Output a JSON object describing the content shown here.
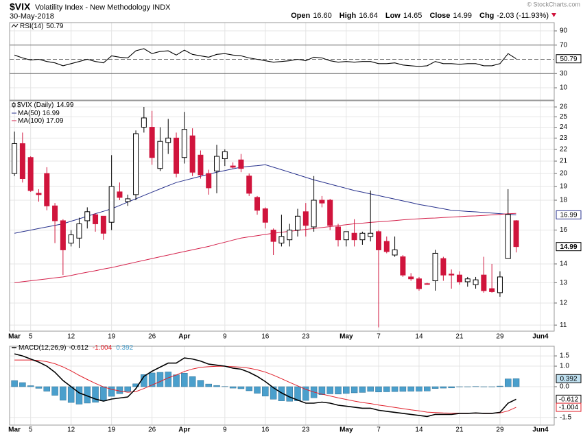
{
  "header": {
    "symbol": "$VIX",
    "name": "Volatility Index - New Methodology INDX",
    "date": "30-May-2018",
    "source": "© StockCharts.com",
    "quote": [
      {
        "label": "Open",
        "value": "16.60"
      },
      {
        "label": "High",
        "value": "16.64"
      },
      {
        "label": "Low",
        "value": "14.65"
      },
      {
        "label": "Close",
        "value": "14.99"
      },
      {
        "label": "Chg",
        "value": "-2.03 (-11.93%)"
      }
    ]
  },
  "chart_data": [
    {
      "type": "line",
      "title": "RSI(14)",
      "color": "#000000",
      "values": [
        56,
        52,
        49,
        50,
        47,
        45,
        41,
        44,
        47,
        50,
        47,
        45,
        55,
        53,
        52,
        62,
        65,
        58,
        61,
        62,
        56,
        63,
        57,
        55,
        53,
        57,
        58,
        56,
        55,
        52,
        50,
        48,
        46,
        47,
        48,
        50,
        48,
        53,
        52,
        48,
        46,
        47,
        46,
        47,
        47,
        44,
        44,
        45,
        42,
        41,
        40,
        41,
        47,
        44,
        44,
        43,
        44,
        44,
        41,
        41,
        44,
        58,
        50.79
      ],
      "ylim": [
        -7.3,
        101.6
      ],
      "yticks": [
        10,
        30,
        70,
        90
      ],
      "bands": [
        30,
        70
      ]
    },
    {
      "type": "candlestick",
      "title": "$VIX (Daily)",
      "log": true,
      "up_color": "#000000",
      "down_color": "#d0143c",
      "open": [
        20.0,
        22.5,
        21.3,
        18.5,
        20.0,
        17.6,
        16.6,
        15.2,
        15.5,
        16.6,
        17.0,
        16.9,
        16.5,
        18.6,
        17.9,
        18.4,
        24.0,
        24.0,
        20.4,
        22.6,
        23.0,
        21.3,
        23.2,
        21.5,
        20.0,
        20.2,
        21.2,
        20.6,
        21.1,
        19.8,
        18.2,
        17.4,
        16.0,
        15.2,
        15.4,
        16.0,
        17.2,
        16.2,
        18.0,
        18.0,
        16.2,
        15.4,
        15.8,
        15.4,
        15.6,
        15.9,
        15.3,
        14.5,
        14.4,
        13.3,
        13.2,
        12.95,
        13.1,
        14.3,
        13.45,
        13.4,
        13.05,
        12.9,
        13.4,
        12.7,
        12.5,
        14.3,
        16.6
      ],
      "high": [
        23.6,
        23.5,
        21.4,
        18.8,
        20.5,
        17.8,
        16.7,
        16.0,
        16.8,
        17.5,
        17.1,
        16.9,
        21.5,
        19.3,
        18.4,
        23.7,
        26.0,
        25.6,
        24.0,
        24.8,
        23.5,
        25.5,
        23.9,
        21.9,
        20.3,
        22.4,
        22.0,
        20.9,
        21.6,
        20.0,
        18.3,
        17.5,
        16.1,
        17.0,
        16.4,
        17.4,
        17.8,
        19.8,
        18.3,
        18.1,
        16.4,
        15.9,
        16.7,
        15.9,
        18.7,
        16.0,
        15.6,
        15.6,
        14.5,
        13.5,
        13.3,
        13.0,
        14.8,
        14.4,
        13.7,
        13.6,
        13.3,
        13.3,
        14.4,
        14.0,
        13.6,
        18.8,
        16.64
      ],
      "low": [
        19.8,
        19.3,
        18.6,
        17.9,
        17.3,
        15.2,
        13.4,
        15.0,
        14.9,
        16.1,
        15.9,
        15.4,
        16.0,
        18.0,
        17.6,
        18.0,
        23.5,
        20.7,
        20.2,
        21.6,
        19.7,
        20.8,
        19.8,
        19.6,
        18.4,
        18.5,
        20.6,
        20.4,
        20.1,
        18.3,
        17.0,
        16.1,
        14.5,
        15.0,
        15.0,
        15.6,
        15.6,
        15.9,
        17.5,
        16.0,
        15.0,
        15.0,
        15.0,
        15.1,
        15.3,
        10.9,
        14.6,
        14.4,
        13.3,
        13.1,
        12.6,
        12.9,
        12.6,
        13.1,
        12.7,
        12.9,
        12.8,
        12.7,
        12.5,
        12.5,
        12.3,
        14.3,
        14.65
      ],
      "close": [
        22.5,
        19.6,
        18.7,
        18.4,
        17.6,
        16.6,
        14.8,
        15.7,
        16.4,
        17.2,
        16.4,
        15.8,
        19.0,
        18.2,
        18.1,
        23.4,
        24.9,
        21.3,
        22.7,
        23.0,
        20.0,
        23.8,
        20.1,
        19.9,
        18.9,
        21.4,
        21.8,
        20.5,
        20.4,
        18.5,
        17.3,
        16.5,
        15.3,
        15.6,
        16.0,
        16.9,
        16.3,
        18.0,
        17.8,
        16.3,
        15.4,
        15.9,
        15.4,
        15.8,
        15.8,
        14.8,
        14.7,
        14.8,
        13.4,
        13.2,
        12.7,
        12.93,
        14.6,
        13.4,
        13.4,
        13.05,
        13.2,
        13.15,
        12.6,
        12.55,
        13.3,
        17.02,
        14.99
      ],
      "series": [
        {
          "name": "MA(50)",
          "color": "#26308c",
          "values": [
            15.8,
            15.9,
            16.0,
            16.1,
            16.2,
            16.3,
            16.4,
            16.57,
            16.73,
            16.9,
            17.07,
            17.23,
            17.4,
            17.63,
            17.87,
            18.1,
            18.34,
            18.58,
            18.82,
            19.06,
            19.3,
            19.46,
            19.62,
            19.78,
            19.94,
            20.1,
            20.23,
            20.37,
            20.5,
            20.57,
            20.63,
            20.7,
            20.5,
            20.3,
            20.1,
            19.9,
            19.7,
            19.5,
            19.34,
            19.18,
            19.02,
            18.86,
            18.7,
            18.58,
            18.45,
            18.33,
            18.2,
            18.08,
            17.95,
            17.83,
            17.7,
            17.6,
            17.5,
            17.4,
            17.3,
            17.26,
            17.22,
            17.19,
            17.15,
            17.11,
            17.07,
            17.03,
            16.99
          ]
        },
        {
          "name": "MA(100)",
          "color": "#d4204a",
          "values": [
            13.0,
            13.05,
            13.1,
            13.15,
            13.2,
            13.25,
            13.3,
            13.38,
            13.47,
            13.55,
            13.63,
            13.72,
            13.8,
            13.9,
            14.0,
            14.1,
            14.2,
            14.3,
            14.4,
            14.5,
            14.6,
            14.7,
            14.8,
            14.9,
            15.0,
            15.13,
            15.25,
            15.38,
            15.5,
            15.58,
            15.65,
            15.73,
            15.8,
            15.86,
            15.92,
            15.98,
            16.04,
            16.1,
            16.16,
            16.22,
            16.28,
            16.34,
            16.4,
            16.44,
            16.49,
            16.53,
            16.57,
            16.61,
            16.66,
            16.7,
            16.73,
            16.76,
            16.78,
            16.81,
            16.84,
            16.87,
            16.9,
            16.92,
            16.95,
            16.99,
            17.02,
            17.06,
            17.09
          ]
        }
      ],
      "ylim": [
        10.74,
        26.64
      ],
      "yticks": [
        11,
        12,
        13,
        14,
        16,
        18,
        19,
        20,
        21,
        22,
        23,
        24,
        25,
        26
      ],
      "xlim": [
        -0.6,
        66.7
      ],
      "xticks": [
        {
          "value": 0,
          "label": "Mar"
        },
        {
          "value": 2,
          "label": "5"
        },
        {
          "value": 7,
          "label": "12"
        },
        {
          "value": 12,
          "label": "19"
        },
        {
          "value": 17,
          "label": "26"
        },
        {
          "value": 21,
          "label": "Apr"
        },
        {
          "value": 26,
          "label": "9"
        },
        {
          "value": 31,
          "label": "16"
        },
        {
          "value": 36,
          "label": "23"
        },
        {
          "value": 41,
          "label": "May"
        },
        {
          "value": 45,
          "label": "7"
        },
        {
          "value": 50,
          "label": "14"
        },
        {
          "value": 55,
          "label": "21"
        },
        {
          "value": 60,
          "label": "29"
        },
        {
          "value": 65,
          "label": "Jun4"
        }
      ]
    },
    {
      "type": "macd",
      "title": "MACD(12,26,9)",
      "macd_color": "#000000",
      "signal_color": "#e0202a",
      "histogram_color": "#4a9fcc",
      "macd": [
        1.6,
        1.5,
        1.35,
        1.2,
        1.0,
        0.7,
        0.3,
        0.0,
        -0.3,
        -0.45,
        -0.6,
        -0.7,
        -0.6,
        -0.55,
        -0.5,
        -0.1,
        0.5,
        0.75,
        0.95,
        1.15,
        1.15,
        1.4,
        1.35,
        1.25,
        1.1,
        1.05,
        1.0,
        0.9,
        0.85,
        0.7,
        0.5,
        0.25,
        -0.05,
        -0.3,
        -0.5,
        -0.65,
        -0.8,
        -0.8,
        -0.75,
        -0.8,
        -0.9,
        -0.95,
        -1.0,
        -1.05,
        -1.05,
        -1.15,
        -1.2,
        -1.25,
        -1.3,
        -1.35,
        -1.4,
        -1.45,
        -1.35,
        -1.35,
        -1.35,
        -1.3,
        -1.3,
        -1.28,
        -1.3,
        -1.3,
        -1.25,
        -0.8,
        -0.612
      ],
      "signal": [
        1.3,
        1.3,
        1.3,
        1.28,
        1.22,
        1.12,
        0.96,
        0.77,
        0.55,
        0.35,
        0.16,
        -0.01,
        -0.13,
        -0.21,
        -0.27,
        -0.24,
        -0.09,
        0.08,
        0.25,
        0.43,
        0.57,
        0.74,
        0.86,
        0.94,
        0.97,
        0.99,
        0.99,
        0.97,
        0.95,
        0.9,
        0.82,
        0.71,
        0.56,
        0.39,
        0.21,
        0.04,
        -0.13,
        -0.26,
        -0.36,
        -0.45,
        -0.54,
        -0.62,
        -0.7,
        -0.77,
        -0.82,
        -0.89,
        -0.95,
        -1.01,
        -1.07,
        -1.13,
        -1.18,
        -1.24,
        -1.26,
        -1.28,
        -1.29,
        -1.29,
        -1.29,
        -1.29,
        -1.29,
        -1.29,
        -1.28,
        -1.18,
        -1.004
      ],
      "histogram": [
        0.3,
        0.2,
        0.05,
        -0.08,
        -0.22,
        -0.42,
        -0.66,
        -0.77,
        -0.85,
        -0.8,
        -0.76,
        -0.69,
        -0.47,
        -0.34,
        -0.23,
        0.14,
        0.59,
        0.67,
        0.7,
        0.72,
        0.58,
        0.66,
        0.49,
        0.31,
        0.13,
        0.06,
        0.01,
        -0.07,
        -0.1,
        -0.2,
        -0.32,
        -0.46,
        -0.61,
        -0.69,
        -0.71,
        -0.69,
        -0.67,
        -0.54,
        -0.39,
        -0.35,
        -0.36,
        -0.33,
        -0.3,
        -0.28,
        -0.23,
        -0.26,
        -0.25,
        -0.24,
        -0.23,
        -0.22,
        -0.22,
        -0.21,
        -0.09,
        -0.07,
        -0.06,
        -0.01,
        -0.01,
        0.01,
        -0.01,
        -0.01,
        0.03,
        0.38,
        0.392
      ],
      "ylim": [
        -1.87,
        1.97
      ],
      "yticks": [
        1.5,
        {
          "value": 1,
          "label": "1.0"
        },
        {
          "value": 0,
          "label": "0.0"
        },
        -1.5
      ]
    }
  ]
}
